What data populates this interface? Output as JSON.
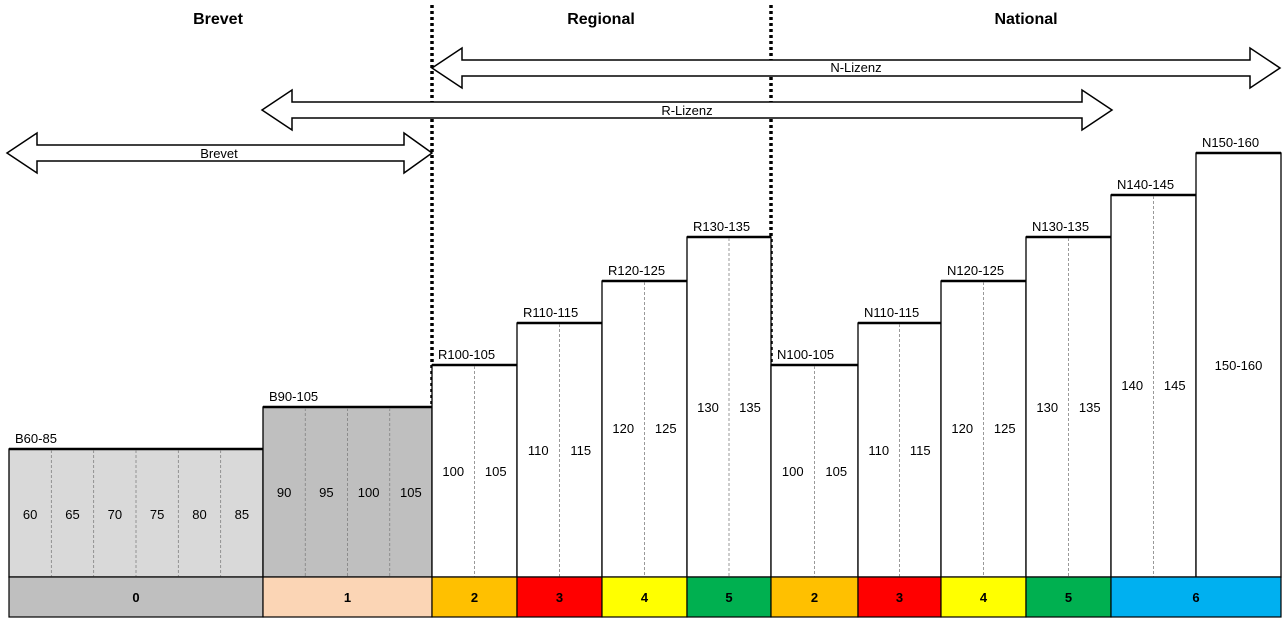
{
  "headers": {
    "brevet": "Brevet",
    "regional": "Regional",
    "national": "National"
  },
  "arrows": {
    "n_license": "N-Lizenz",
    "r_license": "R-Lizenz",
    "brevet": "Brevet"
  },
  "bars": [
    {
      "label": "B60-85",
      "fill": "#d9d9d9",
      "values": [
        "60",
        "65",
        "70",
        "75",
        "80",
        "85"
      ]
    },
    {
      "label": "B90-105",
      "fill": "#bfbfbf",
      "values": [
        "90",
        "95",
        "100",
        "105"
      ]
    },
    {
      "label": "R100-105",
      "fill": "#ffffff",
      "values": [
        "100",
        "105"
      ]
    },
    {
      "label": "R110-115",
      "fill": "#ffffff",
      "values": [
        "110",
        "115"
      ]
    },
    {
      "label": "R120-125",
      "fill": "#ffffff",
      "values": [
        "120",
        "125"
      ]
    },
    {
      "label": "R130-135",
      "fill": "#ffffff",
      "values": [
        "130",
        "135"
      ]
    },
    {
      "label": "N100-105",
      "fill": "#ffffff",
      "values": [
        "100",
        "105"
      ]
    },
    {
      "label": "N110-115",
      "fill": "#ffffff",
      "values": [
        "110",
        "115"
      ]
    },
    {
      "label": "N120-125",
      "fill": "#ffffff",
      "values": [
        "120",
        "125"
      ]
    },
    {
      "label": "N130-135",
      "fill": "#ffffff",
      "values": [
        "130",
        "135"
      ]
    },
    {
      "label": "N140-145",
      "fill": "#ffffff",
      "values": [
        "140",
        "145"
      ]
    },
    {
      "label": "N150-160",
      "fill": "#ffffff",
      "values": [
        "150-160"
      ]
    }
  ],
  "levels": [
    {
      "label": "0",
      "color": "#bfbfbf"
    },
    {
      "label": "1",
      "color": "#fbd5b5"
    },
    {
      "label": "2",
      "color": "#ffc000"
    },
    {
      "label": "3",
      "color": "#ff0000"
    },
    {
      "label": "4",
      "color": "#ffff00"
    },
    {
      "label": "5",
      "color": "#00b050"
    },
    {
      "label": "2",
      "color": "#ffc000"
    },
    {
      "label": "3",
      "color": "#ff0000"
    },
    {
      "label": "4",
      "color": "#ffff00"
    },
    {
      "label": "5",
      "color": "#00b050"
    },
    {
      "label": "6",
      "color": "#00b0f0"
    }
  ]
}
